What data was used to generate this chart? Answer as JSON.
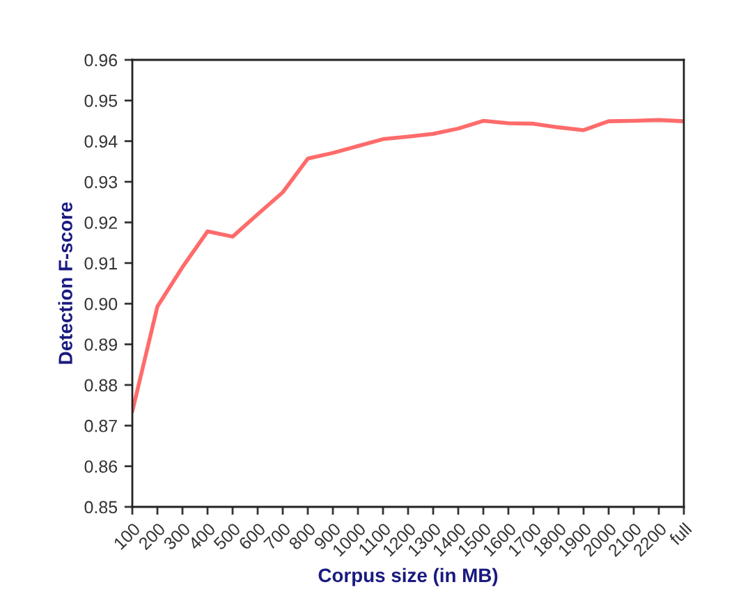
{
  "chart_data": {
    "type": "line",
    "xlabel": "Corpus size (in MB)",
    "ylabel": "Detection F-score",
    "categories": [
      "100",
      "200",
      "300",
      "400",
      "500",
      "600",
      "700",
      "800",
      "900",
      "1000",
      "1100",
      "1200",
      "1300",
      "1400",
      "1500",
      "1600",
      "1700",
      "1800",
      "1900",
      "2000",
      "2100",
      "2200",
      "full"
    ],
    "series": [
      {
        "color": "#ff6b6b",
        "values": [
          0.8735,
          0.8993,
          0.909,
          0.9178,
          0.9165,
          0.922,
          0.9274,
          0.9357,
          0.9371,
          0.9388,
          0.9405,
          0.9411,
          0.9418,
          0.9431,
          0.945,
          0.9444,
          0.9443,
          0.9434,
          0.9427,
          0.9449,
          0.945,
          0.9452,
          0.9449
        ]
      }
    ],
    "ylim": [
      0.85,
      0.96
    ],
    "yticks": [
      {
        "value": 0.85,
        "label": "0.85"
      },
      {
        "value": 0.86,
        "label": "0.86"
      },
      {
        "value": 0.87,
        "label": "0.87"
      },
      {
        "value": 0.88,
        "label": "0.88"
      },
      {
        "value": 0.89,
        "label": "0.89"
      },
      {
        "value": 0.9,
        "label": "0.90"
      },
      {
        "value": 0.91,
        "label": "0.91"
      },
      {
        "value": 0.92,
        "label": "0.92"
      },
      {
        "value": 0.93,
        "label": "0.93"
      },
      {
        "value": 0.94,
        "label": "0.94"
      },
      {
        "value": 0.95,
        "label": "0.95"
      },
      {
        "value": 0.96,
        "label": "0.96"
      }
    ],
    "marker": "none",
    "line_style": "solid"
  }
}
